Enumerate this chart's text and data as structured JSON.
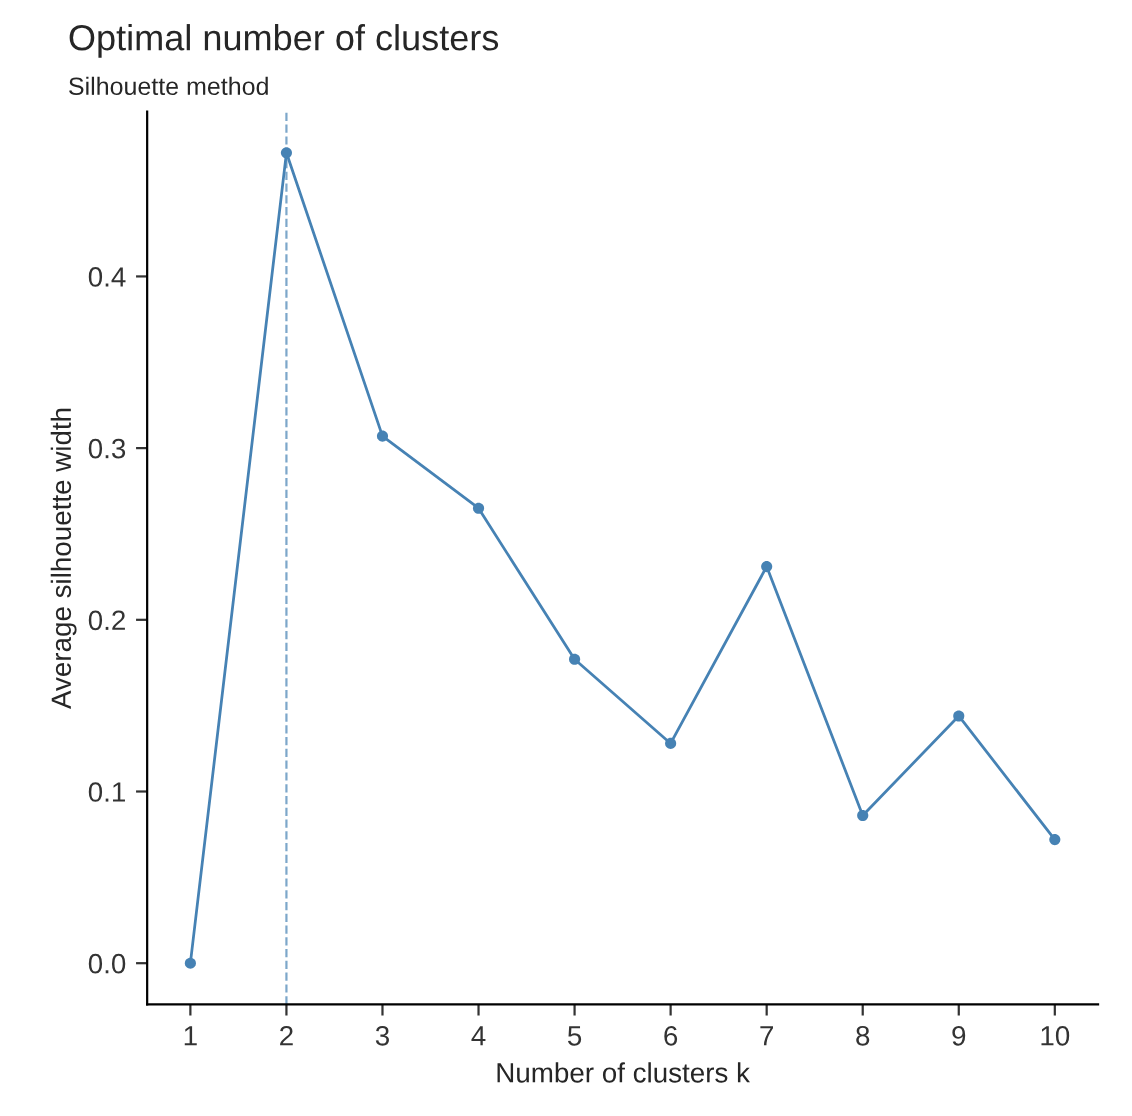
{
  "chart_data": {
    "type": "line",
    "title": "Optimal number of clusters",
    "subtitle": "Silhouette method",
    "xlabel": "Number of clusters k",
    "ylabel": "Average silhouette width",
    "x": [
      1,
      2,
      3,
      4,
      5,
      6,
      7,
      8,
      9,
      10
    ],
    "series": [
      {
        "color": "#4682b4",
        "values": [
          0.0,
          0.472,
          0.307,
          0.265,
          0.177,
          0.128,
          0.231,
          0.086,
          0.144,
          0.072
        ]
      }
    ],
    "xlim": [
      0.55,
      10.45
    ],
    "xticks": [
      1,
      2,
      3,
      4,
      5,
      6,
      7,
      8,
      9,
      10
    ],
    "ylim": [
      -0.024,
      0.496
    ],
    "yticks": [
      {
        "value": 0,
        "label": "0.0"
      },
      0.1,
      0.2,
      0.3,
      0.4
    ],
    "ref_lines": [
      {
        "axis": "x",
        "value": 2,
        "color": "#4682b4",
        "line_style": "dashed"
      }
    ],
    "marker": "circle",
    "line_style": "solid",
    "grid": false
  }
}
